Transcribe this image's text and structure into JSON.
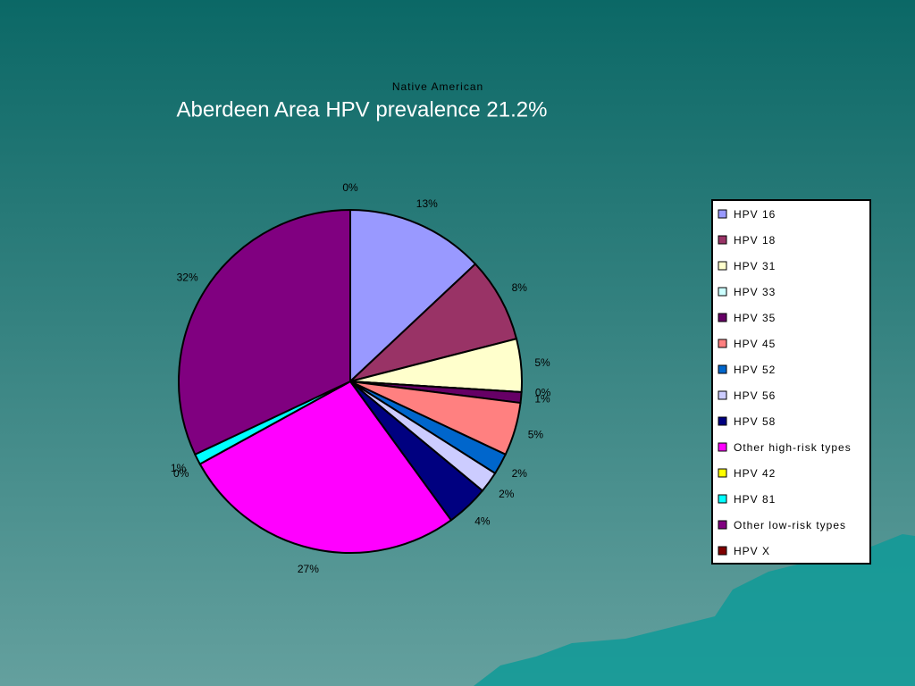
{
  "chart_data": {
    "type": "pie",
    "subtitle": "Native American",
    "title": "Aberdeen Area HPV prevalence 21.2%",
    "categories": [
      "HPV 16",
      "HPV 18",
      "HPV 31",
      "HPV 33",
      "HPV 35",
      "HPV 45",
      "HPV 52",
      "HPV 56",
      "HPV 58",
      "Other high-risk types",
      "HPV 42",
      "HPV 81",
      "Other low-risk types",
      "HPV X"
    ],
    "values": [
      13,
      8,
      5,
      0,
      1,
      5,
      2,
      2,
      4,
      27,
      0,
      1,
      32,
      0
    ],
    "value_labels": [
      "13%",
      "8%",
      "5%",
      "0%",
      "1%",
      "5%",
      "2%",
      "2%",
      "4%",
      "27%",
      "0%",
      "1%",
      "32%",
      "0%"
    ],
    "colors": [
      "#9999ff",
      "#993366",
      "#ffffcc",
      "#ccffff",
      "#660066",
      "#ff8080",
      "#0066cc",
      "#ccccff",
      "#000080",
      "#ff00ff",
      "#ffff00",
      "#00ffff",
      "#800080",
      "#800000"
    ],
    "legend": "right"
  }
}
